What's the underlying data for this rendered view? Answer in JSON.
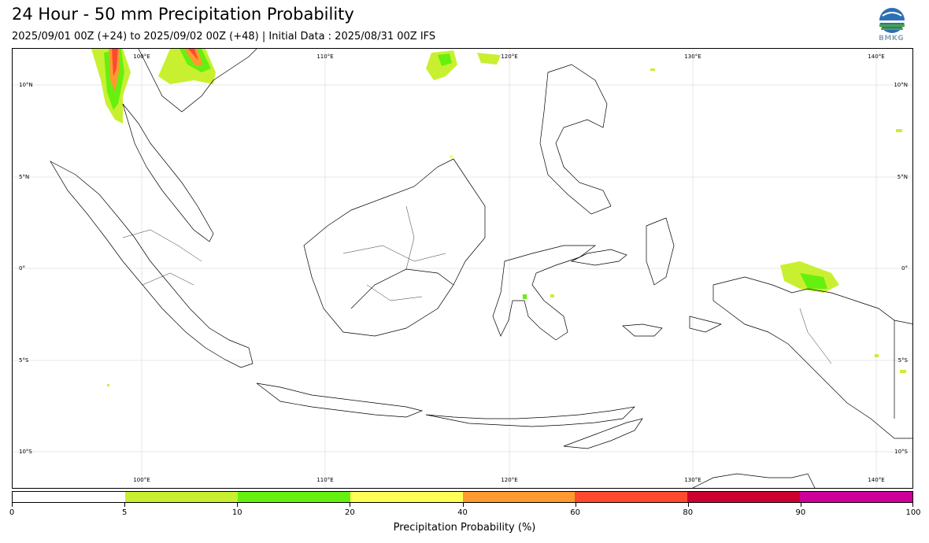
{
  "header": {
    "title": "24 Hour - 50 mm Precipitation Probability",
    "subtitle": "2025/09/01 00Z (+24) to 2025/09/02 00Z (+48) | Initial Data : 2025/08/31 00Z IFS",
    "logo_text": "BMKG"
  },
  "map": {
    "lon_labels": [
      "100°E",
      "110°E",
      "120°E",
      "130°E",
      "140°E"
    ],
    "lat_labels": [
      "10°N",
      "5°N",
      "0°",
      "5°S",
      "10°S"
    ]
  },
  "colorbar": {
    "title": "Precipitation Probability (%)",
    "tick_labels": [
      "0",
      "5",
      "10",
      "20",
      "40",
      "60",
      "80",
      "90",
      "100"
    ],
    "colors": [
      "#ffffff",
      "#c8f030",
      "#66f010",
      "#ffff55",
      "#ff9930",
      "#ff4a30",
      "#cc0030",
      "#cc0099"
    ]
  }
}
